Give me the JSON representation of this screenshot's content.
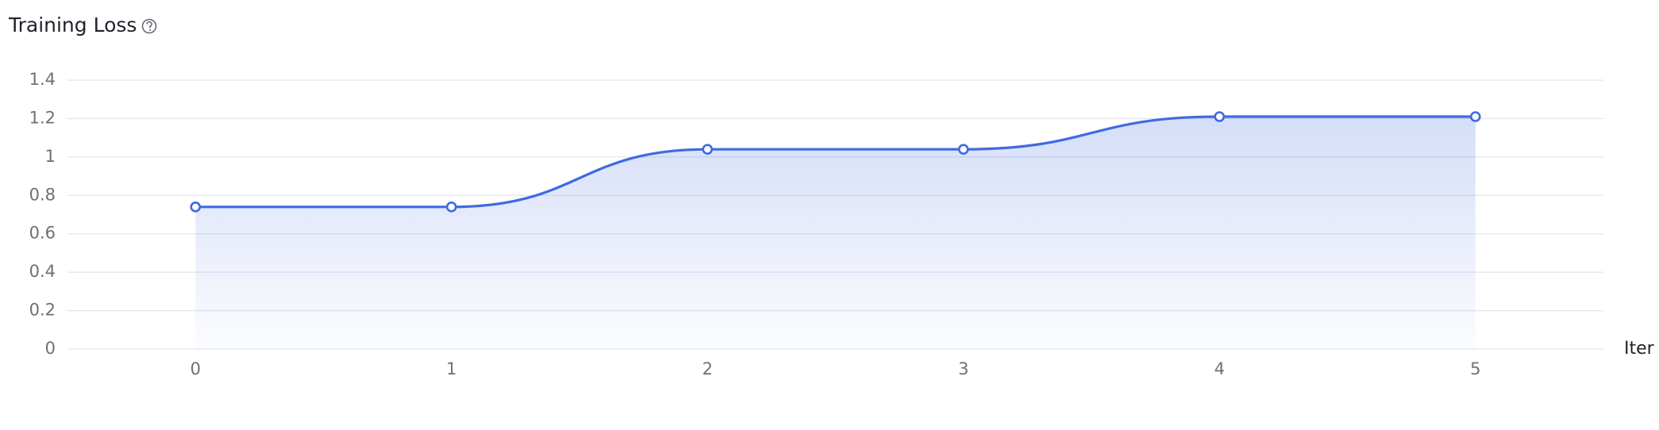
{
  "chart_data": {
    "type": "line",
    "title": "Training Loss",
    "x_label": "Iter",
    "x": [
      0,
      1,
      2,
      3,
      4,
      5
    ],
    "series": [
      {
        "name": "Training Loss",
        "color": "#4169e1",
        "values": [
          0.74,
          0.74,
          1.04,
          1.04,
          1.21,
          1.21
        ]
      }
    ],
    "xlim": [
      -0.5,
      5.5
    ],
    "xticks": [
      0,
      1,
      2,
      3,
      4,
      5
    ],
    "ylim": [
      0,
      1.4
    ],
    "yticks": [
      0,
      0.2,
      0.4,
      0.6,
      0.8,
      1,
      1.2,
      1.4
    ],
    "grid": true,
    "smooth": true,
    "area": true,
    "markers": true
  }
}
